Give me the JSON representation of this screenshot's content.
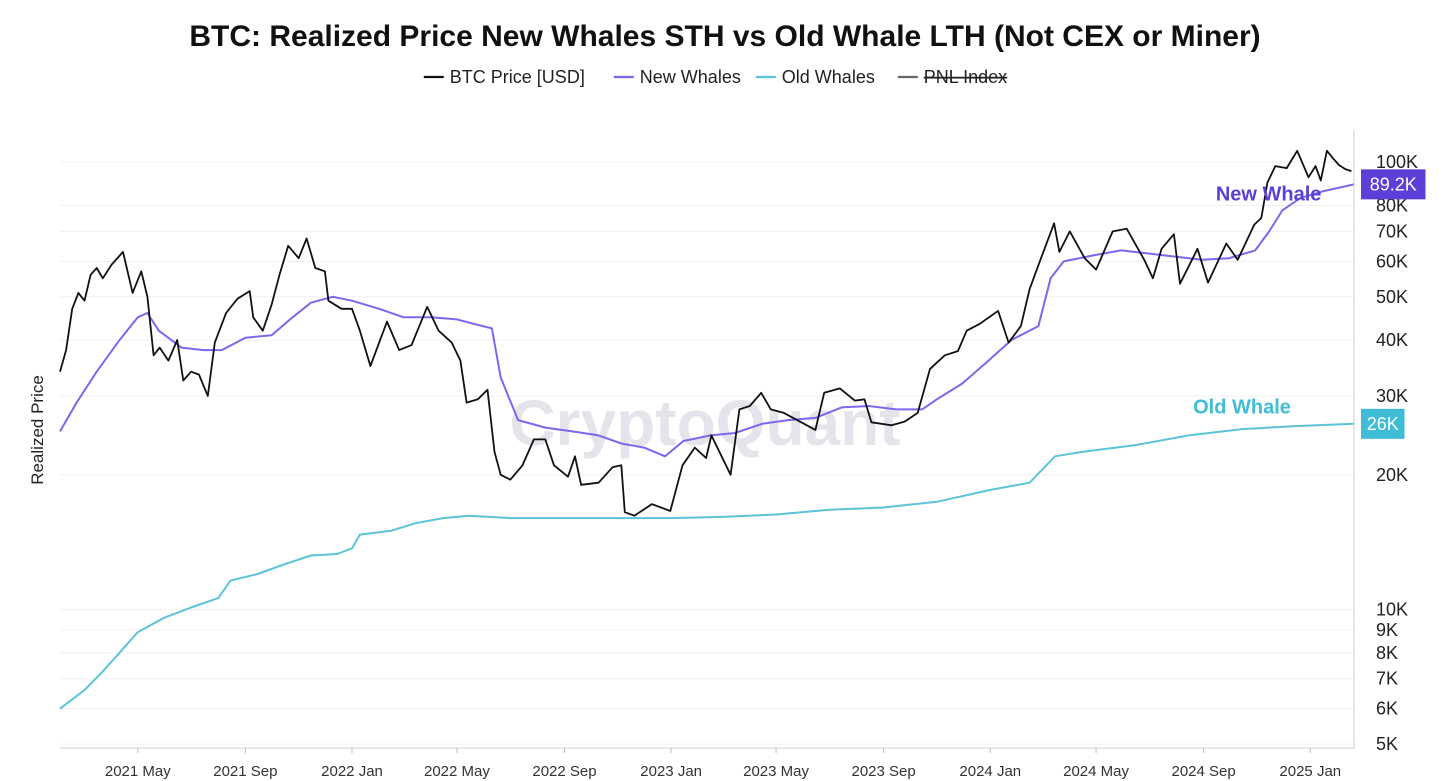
{
  "chart_data": {
    "type": "line",
    "title": "BTC: Realized Price New Whales STH vs Old Whale LTH (Not CEX or Miner)",
    "ylabel": "Realized Price",
    "xlabel": "",
    "y_scale": "log",
    "ylim": [
      4900,
      118000
    ],
    "x_range": [
      "2021-02-01",
      "2025-02-20"
    ],
    "y_ticks": [
      {
        "value": 5000,
        "label": "5K"
      },
      {
        "value": 6000,
        "label": "6K"
      },
      {
        "value": 7000,
        "label": "7K"
      },
      {
        "value": 8000,
        "label": "8K"
      },
      {
        "value": 9000,
        "label": "9K"
      },
      {
        "value": 10000,
        "label": "10K"
      },
      {
        "value": 20000,
        "label": "20K"
      },
      {
        "value": 30000,
        "label": "30K"
      },
      {
        "value": 40000,
        "label": "40K"
      },
      {
        "value": 50000,
        "label": "50K"
      },
      {
        "value": 60000,
        "label": "60K"
      },
      {
        "value": 70000,
        "label": "70K"
      },
      {
        "value": 80000,
        "label": "80K"
      },
      {
        "value": 100000,
        "label": "100K"
      }
    ],
    "x_ticks": [
      {
        "date": "2021-05-01",
        "label": "2021 May"
      },
      {
        "date": "2021-09-01",
        "label": "2021 Sep"
      },
      {
        "date": "2022-01-01",
        "label": "2022 Jan"
      },
      {
        "date": "2022-05-01",
        "label": "2022 May"
      },
      {
        "date": "2022-09-01",
        "label": "2022 Sep"
      },
      {
        "date": "2023-01-01",
        "label": "2023 Jan"
      },
      {
        "date": "2023-05-01",
        "label": "2023 May"
      },
      {
        "date": "2023-09-01",
        "label": "2023 Sep"
      },
      {
        "date": "2024-01-01",
        "label": "2024 Jan"
      },
      {
        "date": "2024-05-01",
        "label": "2024 May"
      },
      {
        "date": "2024-09-01",
        "label": "2024 Sep"
      },
      {
        "date": "2025-01-01",
        "label": "2025 Jan"
      }
    ],
    "legend": [
      {
        "label": "BTC Price [USD]",
        "color": "#111111",
        "disabled": false
      },
      {
        "label": "New Whales",
        "color": "#7b68ee",
        "disabled": false
      },
      {
        "label": "Old Whales",
        "color": "#5bc4d8",
        "disabled": false
      },
      {
        "label": "PNL Index",
        "color": "#666666",
        "disabled": true
      }
    ],
    "legend_position": "top-center",
    "series": [
      {
        "name": "BTC Price [USD]",
        "color": "#111111",
        "points": [
          [
            "2021-02-01",
            34000
          ],
          [
            "2021-02-08",
            38000
          ],
          [
            "2021-02-15",
            47000
          ],
          [
            "2021-02-22",
            51000
          ],
          [
            "2021-03-01",
            49000
          ],
          [
            "2021-03-08",
            56000
          ],
          [
            "2021-03-15",
            58000
          ],
          [
            "2021-03-22",
            55000
          ],
          [
            "2021-04-01",
            59000
          ],
          [
            "2021-04-14",
            63000
          ],
          [
            "2021-04-25",
            51000
          ],
          [
            "2021-05-05",
            57000
          ],
          [
            "2021-05-12",
            50000
          ],
          [
            "2021-05-19",
            37000
          ],
          [
            "2021-05-26",
            38500
          ],
          [
            "2021-06-05",
            36000
          ],
          [
            "2021-06-15",
            40000
          ],
          [
            "2021-06-22",
            32500
          ],
          [
            "2021-07-01",
            34000
          ],
          [
            "2021-07-10",
            33500
          ],
          [
            "2021-07-20",
            30000
          ],
          [
            "2021-07-28",
            39500
          ],
          [
            "2021-08-10",
            46000
          ],
          [
            "2021-08-23",
            49500
          ],
          [
            "2021-09-06",
            51500
          ],
          [
            "2021-09-10",
            45000
          ],
          [
            "2021-09-21",
            42000
          ],
          [
            "2021-10-01",
            48000
          ],
          [
            "2021-10-10",
            56000
          ],
          [
            "2021-10-20",
            65000
          ],
          [
            "2021-11-01",
            61000
          ],
          [
            "2021-11-10",
            67500
          ],
          [
            "2021-11-20",
            58000
          ],
          [
            "2021-12-01",
            57000
          ],
          [
            "2021-12-05",
            49000
          ],
          [
            "2021-12-20",
            47000
          ],
          [
            "2022-01-01",
            47000
          ],
          [
            "2022-01-10",
            42000
          ],
          [
            "2022-01-22",
            35000
          ],
          [
            "2022-02-10",
            44000
          ],
          [
            "2022-02-24",
            38000
          ],
          [
            "2022-03-10",
            39000
          ],
          [
            "2022-03-28",
            47500
          ],
          [
            "2022-04-10",
            42000
          ],
          [
            "2022-04-25",
            39500
          ],
          [
            "2022-05-05",
            36000
          ],
          [
            "2022-05-12",
            29000
          ],
          [
            "2022-05-25",
            29500
          ],
          [
            "2022-06-05",
            31000
          ],
          [
            "2022-06-13",
            22500
          ],
          [
            "2022-06-20",
            20000
          ],
          [
            "2022-07-01",
            19500
          ],
          [
            "2022-07-15",
            21000
          ],
          [
            "2022-07-28",
            24000
          ],
          [
            "2022-08-10",
            24000
          ],
          [
            "2022-08-20",
            21000
          ],
          [
            "2022-09-05",
            19800
          ],
          [
            "2022-09-13",
            22000
          ],
          [
            "2022-09-20",
            19000
          ],
          [
            "2022-10-10",
            19200
          ],
          [
            "2022-10-26",
            20800
          ],
          [
            "2022-11-05",
            21000
          ],
          [
            "2022-11-09",
            16500
          ],
          [
            "2022-11-20",
            16200
          ],
          [
            "2022-12-10",
            17200
          ],
          [
            "2022-12-31",
            16600
          ],
          [
            "2023-01-14",
            21000
          ],
          [
            "2023-01-28",
            23000
          ],
          [
            "2023-02-10",
            21800
          ],
          [
            "2023-02-16",
            24500
          ],
          [
            "2023-03-10",
            20000
          ],
          [
            "2023-03-20",
            28000
          ],
          [
            "2023-04-01",
            28500
          ],
          [
            "2023-04-14",
            30500
          ],
          [
            "2023-04-25",
            28000
          ],
          [
            "2023-05-10",
            27500
          ],
          [
            "2023-05-25",
            26500
          ],
          [
            "2023-06-15",
            25200
          ],
          [
            "2023-06-25",
            30500
          ],
          [
            "2023-07-13",
            31200
          ],
          [
            "2023-07-30",
            29300
          ],
          [
            "2023-08-10",
            29500
          ],
          [
            "2023-08-18",
            26200
          ],
          [
            "2023-09-10",
            25800
          ],
          [
            "2023-09-25",
            26300
          ],
          [
            "2023-10-10",
            27500
          ],
          [
            "2023-10-24",
            34500
          ],
          [
            "2023-11-10",
            37000
          ],
          [
            "2023-11-25",
            37800
          ],
          [
            "2023-12-05",
            42000
          ],
          [
            "2023-12-20",
            43500
          ],
          [
            "2024-01-10",
            46500
          ],
          [
            "2024-01-22",
            39500
          ],
          [
            "2024-02-05",
            43000
          ],
          [
            "2024-02-15",
            52000
          ],
          [
            "2024-02-28",
            61000
          ],
          [
            "2024-03-14",
            73000
          ],
          [
            "2024-03-20",
            63000
          ],
          [
            "2024-04-01",
            70000
          ],
          [
            "2024-04-18",
            61000
          ],
          [
            "2024-05-01",
            57500
          ],
          [
            "2024-05-20",
            70000
          ],
          [
            "2024-06-05",
            71000
          ],
          [
            "2024-06-25",
            60500
          ],
          [
            "2024-07-05",
            55000
          ],
          [
            "2024-07-15",
            64000
          ],
          [
            "2024-07-29",
            69000
          ],
          [
            "2024-08-05",
            53500
          ],
          [
            "2024-08-25",
            64000
          ],
          [
            "2024-09-06",
            53800
          ],
          [
            "2024-09-27",
            65800
          ],
          [
            "2024-10-10",
            60500
          ],
          [
            "2024-10-29",
            72500
          ],
          [
            "2024-11-06",
            75000
          ],
          [
            "2024-11-13",
            90000
          ],
          [
            "2024-11-22",
            98000
          ],
          [
            "2024-12-05",
            97000
          ],
          [
            "2024-12-17",
            106000
          ],
          [
            "2024-12-30",
            92500
          ],
          [
            "2025-01-07",
            98000
          ],
          [
            "2025-01-13",
            91000
          ],
          [
            "2025-01-20",
            106000
          ],
          [
            "2025-01-27",
            102000
          ],
          [
            "2025-02-03",
            98500
          ],
          [
            "2025-02-10",
            96500
          ],
          [
            "2025-02-17",
            95500
          ]
        ]
      },
      {
        "name": "New Whales",
        "color": "#7b68ee",
        "points": [
          [
            "2021-02-01",
            25000
          ],
          [
            "2021-02-20",
            29000
          ],
          [
            "2021-03-15",
            34000
          ],
          [
            "2021-04-10",
            40000
          ],
          [
            "2021-05-01",
            45000
          ],
          [
            "2021-05-12",
            46000
          ],
          [
            "2021-05-25",
            42000
          ],
          [
            "2021-06-20",
            38500
          ],
          [
            "2021-07-15",
            38000
          ],
          [
            "2021-08-05",
            38000
          ],
          [
            "2021-09-01",
            40500
          ],
          [
            "2021-10-01",
            41000
          ],
          [
            "2021-10-25",
            45000
          ],
          [
            "2021-11-15",
            48500
          ],
          [
            "2021-12-10",
            50000
          ],
          [
            "2022-01-01",
            49000
          ],
          [
            "2022-02-01",
            47000
          ],
          [
            "2022-03-01",
            45000
          ],
          [
            "2022-04-01",
            45000
          ],
          [
            "2022-05-01",
            44500
          ],
          [
            "2022-05-20",
            43500
          ],
          [
            "2022-06-10",
            42500
          ],
          [
            "2022-06-20",
            33000
          ],
          [
            "2022-07-10",
            26500
          ],
          [
            "2022-08-10",
            25500
          ],
          [
            "2022-09-10",
            25000
          ],
          [
            "2022-10-10",
            24500
          ],
          [
            "2022-11-05",
            23500
          ],
          [
            "2022-12-01",
            23000
          ],
          [
            "2022-12-25",
            22000
          ],
          [
            "2023-01-15",
            23800
          ],
          [
            "2023-02-15",
            24500
          ],
          [
            "2023-03-15",
            24800
          ],
          [
            "2023-04-15",
            26000
          ],
          [
            "2023-05-15",
            26500
          ],
          [
            "2023-06-15",
            26800
          ],
          [
            "2023-07-15",
            28300
          ],
          [
            "2023-08-15",
            28500
          ],
          [
            "2023-09-15",
            28000
          ],
          [
            "2023-10-15",
            28000
          ],
          [
            "2023-11-01",
            29500
          ],
          [
            "2023-11-30",
            32000
          ],
          [
            "2023-12-30",
            36000
          ],
          [
            "2024-01-25",
            40000
          ],
          [
            "2024-02-25",
            43000
          ],
          [
            "2024-03-10",
            55000
          ],
          [
            "2024-03-25",
            60000
          ],
          [
            "2024-04-30",
            62000
          ],
          [
            "2024-05-30",
            63500
          ],
          [
            "2024-06-30",
            62500
          ],
          [
            "2024-07-30",
            61500
          ],
          [
            "2024-08-30",
            60500
          ],
          [
            "2024-09-30",
            61000
          ],
          [
            "2024-10-30",
            63500
          ],
          [
            "2024-11-15",
            70000
          ],
          [
            "2024-11-30",
            78000
          ],
          [
            "2024-12-20",
            83000
          ],
          [
            "2025-01-15",
            86000
          ],
          [
            "2025-02-20",
            89200
          ]
        ]
      },
      {
        "name": "Old Whales",
        "color": "#5bc4d8",
        "points": [
          [
            "2021-02-01",
            6000
          ],
          [
            "2021-03-01",
            6600
          ],
          [
            "2021-03-20",
            7200
          ],
          [
            "2021-04-10",
            8000
          ],
          [
            "2021-05-01",
            8900
          ],
          [
            "2021-06-01",
            9600
          ],
          [
            "2021-07-01",
            10100
          ],
          [
            "2021-08-01",
            10600
          ],
          [
            "2021-08-15",
            11600
          ],
          [
            "2021-09-15",
            12000
          ],
          [
            "2021-10-15",
            12600
          ],
          [
            "2021-11-15",
            13200
          ],
          [
            "2021-12-15",
            13300
          ],
          [
            "2022-01-01",
            13700
          ],
          [
            "2022-01-10",
            14700
          ],
          [
            "2022-02-15",
            15000
          ],
          [
            "2022-03-15",
            15600
          ],
          [
            "2022-04-15",
            16000
          ],
          [
            "2022-05-15",
            16200
          ],
          [
            "2022-07-01",
            16000
          ],
          [
            "2022-09-01",
            16000
          ],
          [
            "2022-11-01",
            16000
          ],
          [
            "2023-01-01",
            16000
          ],
          [
            "2023-03-01",
            16100
          ],
          [
            "2023-05-01",
            16300
          ],
          [
            "2023-07-01",
            16700
          ],
          [
            "2023-09-01",
            16900
          ],
          [
            "2023-11-01",
            17400
          ],
          [
            "2024-01-01",
            18500
          ],
          [
            "2024-02-15",
            19200
          ],
          [
            "2024-03-15",
            22000
          ],
          [
            "2024-04-15",
            22500
          ],
          [
            "2024-06-15",
            23300
          ],
          [
            "2024-08-15",
            24500
          ],
          [
            "2024-10-15",
            25300
          ],
          [
            "2024-12-15",
            25700
          ],
          [
            "2025-02-20",
            26000
          ]
        ]
      }
    ],
    "badges": [
      {
        "series": "New Whales",
        "value": 89200,
        "label": "89.2K",
        "color": "#5b3fd6"
      },
      {
        "series": "Old Whales",
        "value": 26000,
        "label": "26K",
        "color": "#3fbcd6"
      }
    ],
    "annotations": [
      {
        "text": "New Whale",
        "color": "#5b3fd6",
        "date": "2024-09-15",
        "value": 82000
      },
      {
        "text": "Old Whale",
        "color": "#3fbcd6",
        "date": "2024-08-20",
        "value": 27400
      }
    ],
    "watermark": "CryptoQuant",
    "grid": true
  }
}
